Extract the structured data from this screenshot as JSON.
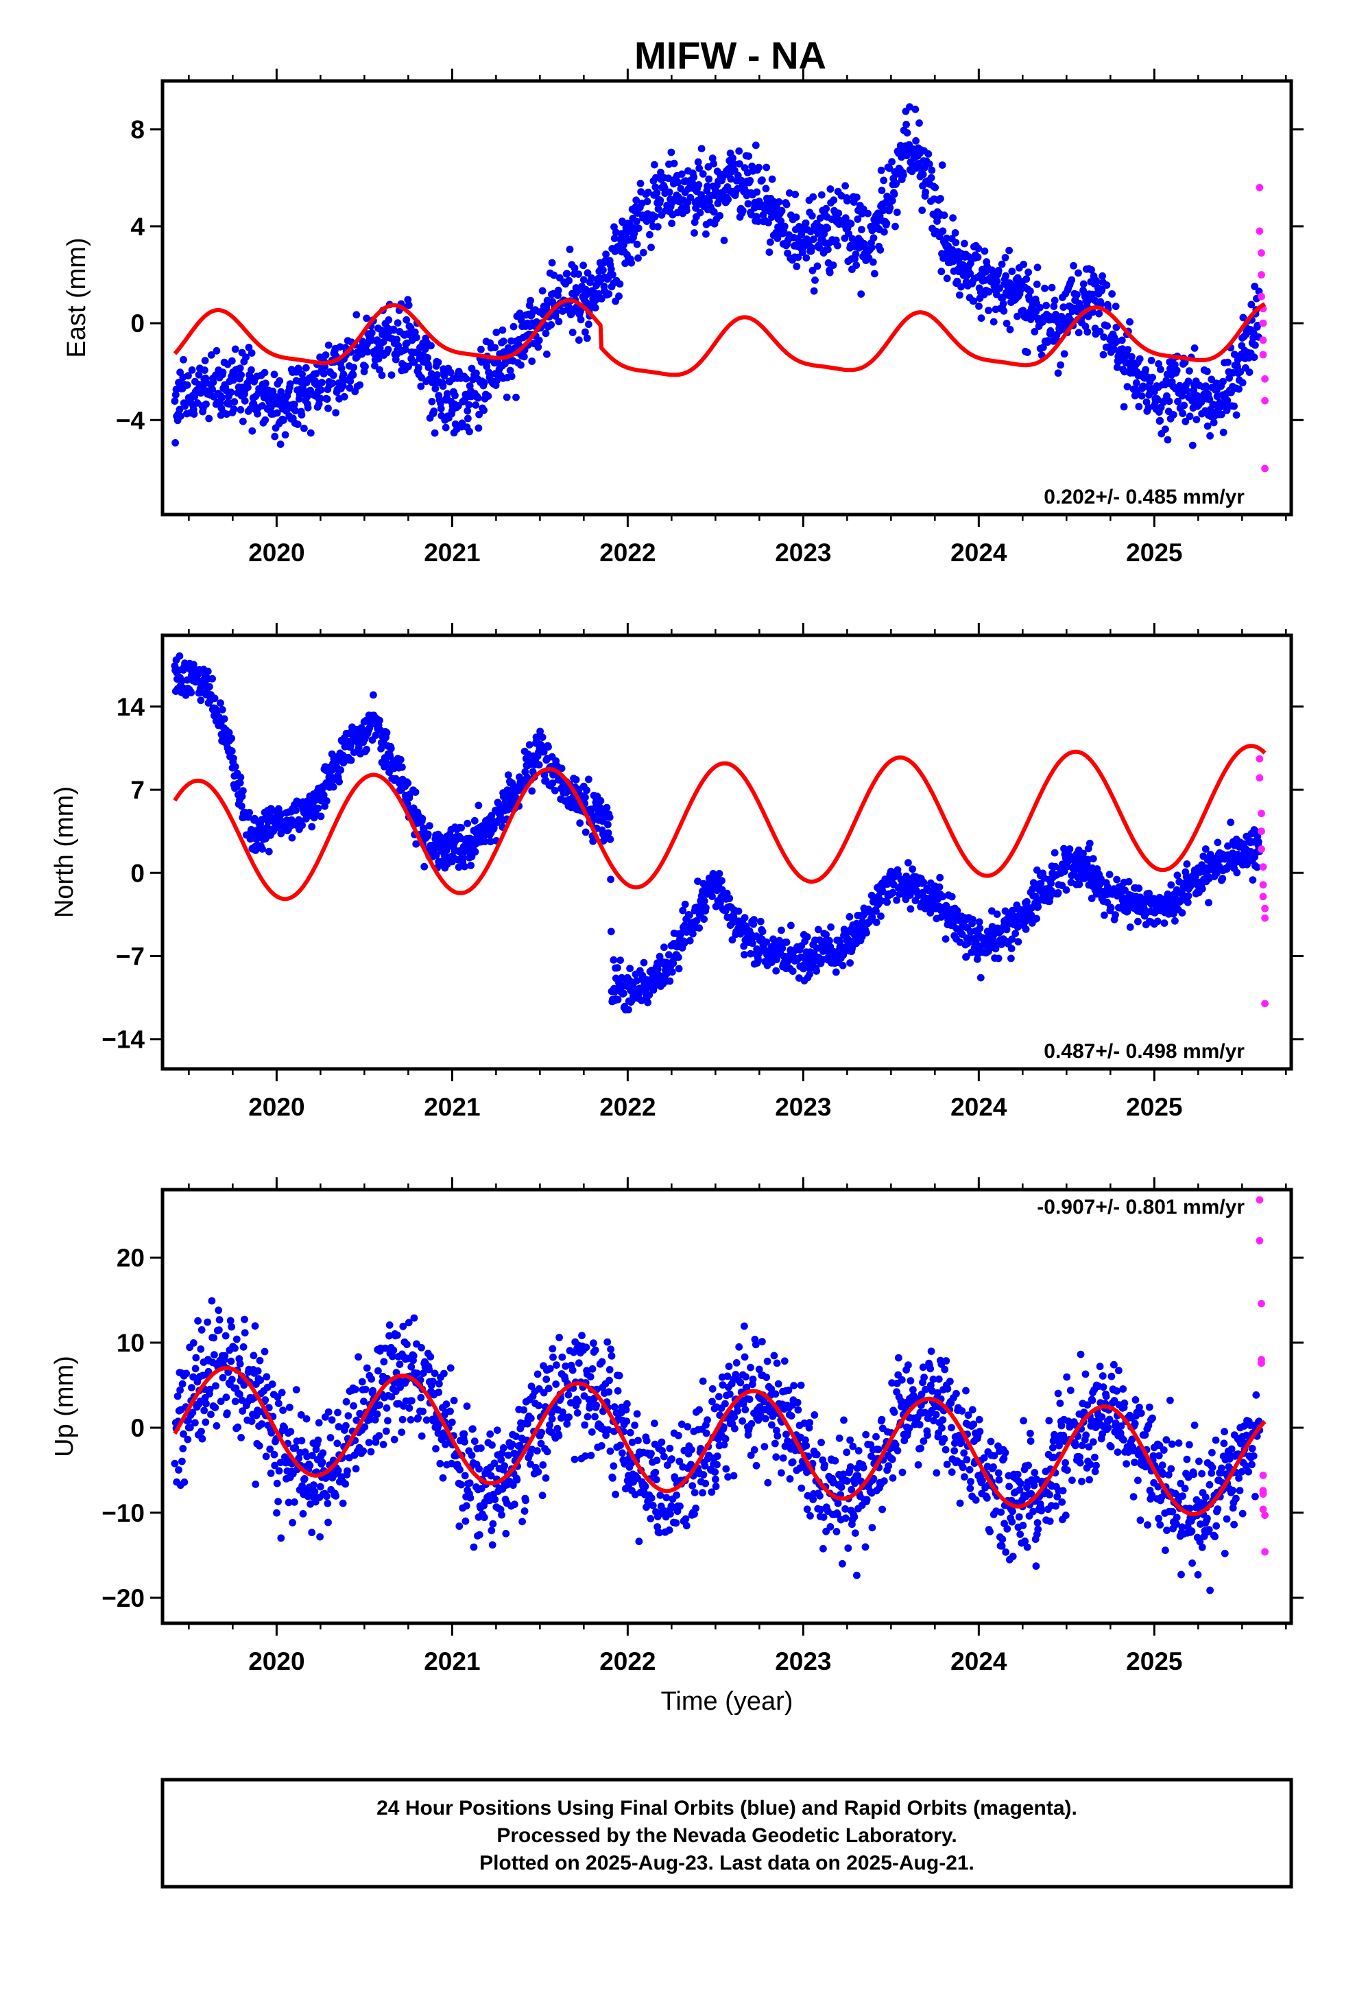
{
  "title": "MIFW - NA",
  "footer": {
    "lines": [
      "24 Hour Positions Using Final Orbits (blue) and Rapid Orbits (magenta).",
      "Processed by the Nevada Geodetic Laboratory.",
      "Plotted on 2025-Aug-23. Last data on 2025-Aug-21."
    ]
  },
  "colors": {
    "final_points": "#0000ff",
    "rapid_points": "#ff22ff",
    "model_curve": "#ff0000",
    "frame": "#000000"
  },
  "chart_data": [
    {
      "type": "scatter",
      "name": "east",
      "ylabel": "East (mm)",
      "xlabel": "",
      "rate_label": "0.202+/- 0.485 mm/yr",
      "rate_position": "bottom-right",
      "xlim": [
        2019.35,
        2025.78
      ],
      "ylim": [
        -7.9,
        10.0
      ],
      "x_ticks": [
        2020,
        2021,
        2022,
        2023,
        2024,
        2025
      ],
      "x_tick_labels": [
        "2020",
        "2021",
        "2022",
        "2023",
        "2024",
        "2025"
      ],
      "y_ticks": [
        8,
        4,
        0,
        -4
      ],
      "y_tick_labels": [
        "8",
        "4",
        "0",
        "−4"
      ],
      "trend_knots": [
        [
          2019.42,
          -3.4
        ],
        [
          2019.6,
          -3.0
        ],
        [
          2019.8,
          -2.4
        ],
        [
          2020.0,
          -2.8
        ],
        [
          2020.3,
          -2.5
        ],
        [
          2020.6,
          -1.2
        ],
        [
          2020.75,
          -0.5
        ],
        [
          2020.9,
          -2.4
        ],
        [
          2021.05,
          -3.0
        ],
        [
          2021.25,
          -1.8
        ],
        [
          2021.45,
          -0.6
        ],
        [
          2021.65,
          0.9
        ],
        [
          2021.78,
          1.2
        ],
        [
          2021.92,
          2.8
        ],
        [
          2022.05,
          4.8
        ],
        [
          2022.25,
          5.6
        ],
        [
          2022.45,
          4.6
        ],
        [
          2022.6,
          5.6
        ],
        [
          2022.8,
          4.9
        ],
        [
          2023.0,
          3.8
        ],
        [
          2023.2,
          4.2
        ],
        [
          2023.4,
          2.8
        ],
        [
          2023.48,
          4.8
        ],
        [
          2023.62,
          7.3
        ],
        [
          2023.72,
          5.5
        ],
        [
          2023.82,
          3.2
        ],
        [
          2024.0,
          2.3
        ],
        [
          2024.2,
          1.4
        ],
        [
          2024.38,
          -0.3
        ],
        [
          2024.46,
          -0.5
        ],
        [
          2024.6,
          0.9
        ],
        [
          2024.68,
          0.5
        ],
        [
          2024.85,
          -1.6
        ],
        [
          2025.0,
          -2.4
        ],
        [
          2025.2,
          -2.8
        ],
        [
          2025.38,
          -3.6
        ],
        [
          2025.5,
          -2.0
        ],
        [
          2025.6,
          0.3
        ]
      ],
      "seasonal_amplitude": 0.4,
      "noise_sd": 0.75,
      "model": {
        "offset": 0.0,
        "slope": 0.202,
        "epoch": 2019.42,
        "start": -0.9,
        "annual_amp": 1.1,
        "annual_phase": 2019.68,
        "semiannual_amp": 0.3,
        "semiannual_phase": 2019.65,
        "x_range": [
          2019.42,
          2025.63
        ],
        "steps": [
          [
            2021.85,
            -0.9
          ]
        ]
      },
      "rapid_points": {
        "x": [
          2025.6,
          2025.6,
          2025.61,
          2025.61,
          2025.61,
          2025.62,
          2025.62,
          2025.62,
          2025.62,
          2025.63,
          2025.63,
          2025.63
        ],
        "y": [
          5.6,
          3.8,
          2.9,
          2.0,
          1.1,
          0.6,
          0.0,
          -0.7,
          -1.3,
          -2.3,
          -3.2,
          -6.0
        ]
      }
    },
    {
      "type": "scatter",
      "name": "north",
      "ylabel": "North (mm)",
      "xlabel": "",
      "rate_label": "0.487+/- 0.498 mm/yr",
      "rate_position": "bottom-right",
      "xlim": [
        2019.35,
        2025.78
      ],
      "ylim": [
        -16.5,
        20.0
      ],
      "x_ticks": [
        2020,
        2021,
        2022,
        2023,
        2024,
        2025
      ],
      "x_tick_labels": [
        "2020",
        "2021",
        "2022",
        "2023",
        "2024",
        "2025"
      ],
      "y_ticks": [
        14,
        7,
        0,
        -7,
        -14
      ],
      "y_tick_labels": [
        "14",
        "7",
        "0",
        "−7",
        "−14"
      ],
      "trend_knots": [
        [
          2019.42,
          16.5
        ],
        [
          2019.6,
          16.0
        ],
        [
          2019.75,
          9.5
        ],
        [
          2019.85,
          3.5
        ],
        [
          2020.0,
          3.8
        ],
        [
          2020.2,
          5.5
        ],
        [
          2020.4,
          10.5
        ],
        [
          2020.55,
          12.5
        ],
        [
          2020.7,
          8.0
        ],
        [
          2020.85,
          2.5
        ],
        [
          2021.0,
          1.8
        ],
        [
          2021.2,
          3.5
        ],
        [
          2021.4,
          8.0
        ],
        [
          2021.5,
          10.0
        ],
        [
          2021.65,
          7.0
        ],
        [
          2021.9,
          3.5
        ],
        [
          2021.91,
          -9.5
        ],
        [
          2022.05,
          -10.0
        ],
        [
          2022.2,
          -8.5
        ],
        [
          2022.35,
          -4.5
        ],
        [
          2022.5,
          -1.0
        ],
        [
          2022.65,
          -5.0
        ],
        [
          2022.8,
          -6.5
        ],
        [
          2023.0,
          -7.2
        ],
        [
          2023.2,
          -6.5
        ],
        [
          2023.38,
          -3.5
        ],
        [
          2023.5,
          -0.5
        ],
        [
          2023.7,
          -1.8
        ],
        [
          2023.9,
          -4.5
        ],
        [
          2024.0,
          -6.0
        ],
        [
          2024.2,
          -4.5
        ],
        [
          2024.4,
          -1.0
        ],
        [
          2024.5,
          1.0
        ],
        [
          2024.62,
          0.5
        ],
        [
          2024.75,
          -2.0
        ],
        [
          2024.95,
          -3.0
        ],
        [
          2025.1,
          -2.4
        ],
        [
          2025.3,
          0.5
        ],
        [
          2025.45,
          1.5
        ],
        [
          2025.6,
          2.2
        ]
      ],
      "seasonal_amplitude": 0.0,
      "noise_sd": 0.9,
      "model": {
        "offset": 0.0,
        "slope": 0.487,
        "epoch": 2019.42,
        "start": 2.6,
        "annual_amp": 5.1,
        "annual_phase": 2019.55,
        "semiannual_amp": 0.0,
        "semiannual_phase": 2019.5,
        "x_range": [
          2019.42,
          2025.63
        ],
        "steps": []
      },
      "rapid_points": {
        "x": [
          2025.6,
          2025.6,
          2025.61,
          2025.61,
          2025.61,
          2025.62,
          2025.62,
          2025.62,
          2025.63,
          2025.63,
          2025.63
        ],
        "y": [
          9.6,
          8.0,
          5.0,
          3.5,
          2.0,
          0.5,
          -1.0,
          -2.0,
          -3.0,
          -3.8,
          -11.0
        ]
      }
    },
    {
      "type": "scatter",
      "name": "up",
      "ylabel": "Up (mm)",
      "xlabel": "Time (year)",
      "rate_label": "-0.907+/- 0.801 mm/yr",
      "rate_position": "top-right",
      "xlim": [
        2019.35,
        2025.78
      ],
      "ylim": [
        -23,
        28
      ],
      "x_ticks": [
        2020,
        2021,
        2022,
        2023,
        2024,
        2025
      ],
      "x_tick_labels": [
        "2020",
        "2021",
        "2022",
        "2023",
        "2024",
        "2025"
      ],
      "y_ticks": [
        20,
        10,
        0,
        -10,
        -20
      ],
      "y_tick_labels": [
        "20",
        "10",
        "0",
        "−10",
        "−20"
      ],
      "trend_knots": [
        [
          2019.42,
          1.2
        ],
        [
          2025.63,
          -4.4
        ]
      ],
      "seasonal_amplitude": 6.0,
      "seasonal_phase": 2019.72,
      "noise_sd": 3.4,
      "model": {
        "offset": 0.0,
        "slope": -0.907,
        "epoch": 2019.42,
        "start": 1.2,
        "annual_amp": 6.1,
        "annual_phase": 2019.72,
        "semiannual_amp": 0.0,
        "semiannual_phase": 2019.5,
        "x_range": [
          2019.42,
          2025.63
        ],
        "steps": []
      },
      "rapid_points": {
        "x": [
          2025.6,
          2025.6,
          2025.61,
          2025.61,
          2025.61,
          2025.62,
          2025.62,
          2025.62,
          2025.62,
          2025.63,
          2025.63
        ],
        "y": [
          26.8,
          22.0,
          14.6,
          8.0,
          7.6,
          -5.6,
          -7.4,
          -7.8,
          -9.6,
          -10.3,
          -14.6
        ]
      }
    }
  ]
}
